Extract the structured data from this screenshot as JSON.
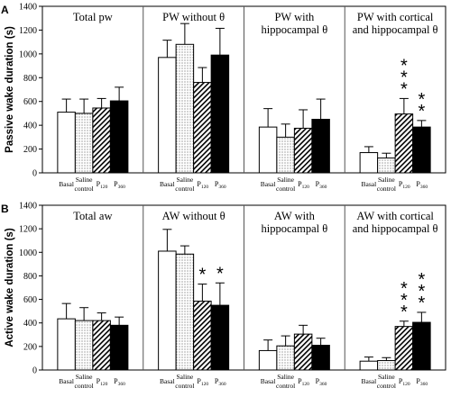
{
  "chart_data": [
    {
      "type": "bar",
      "panel_letter": "A",
      "ylabel": "Passive wake duration (s)",
      "ylim": [
        0,
        1400
      ],
      "yticks": [
        "0",
        "200",
        "400",
        "600",
        "800",
        "1000",
        "1200",
        "1400"
      ],
      "categories": [
        "Basal",
        "Saline control",
        "P120",
        "P360"
      ],
      "category_labels": {
        "basal": "Basal",
        "saline_line1": "Saline",
        "saline_line2": "control",
        "p_letter": "P",
        "p120_sub": "120",
        "p360_sub": "360"
      },
      "groups": [
        {
          "title_lines": [
            "Total pw"
          ],
          "values": [
            510,
            500,
            545,
            605
          ],
          "errors": [
            110,
            120,
            80,
            115
          ],
          "stars": [
            0,
            0,
            0,
            0
          ]
        },
        {
          "title_lines": [
            "PW without θ"
          ],
          "values": [
            970,
            1080,
            760,
            990
          ],
          "errors": [
            145,
            175,
            125,
            225
          ],
          "stars": [
            0,
            0,
            0,
            0
          ]
        },
        {
          "title_lines": [
            "PW with",
            "hippocampal θ"
          ],
          "values": [
            385,
            300,
            375,
            450
          ],
          "errors": [
            155,
            110,
            155,
            170
          ],
          "stars": [
            0,
            0,
            0,
            0
          ]
        },
        {
          "title_lines": [
            "PW with cortical",
            "and hippocampal θ"
          ],
          "values": [
            170,
            125,
            495,
            385
          ],
          "errors": [
            50,
            40,
            130,
            55
          ],
          "stars": [
            0,
            0,
            3,
            2
          ]
        }
      ]
    },
    {
      "type": "bar",
      "panel_letter": "B",
      "ylabel": "Active wake duration (s)",
      "ylim": [
        0,
        1400
      ],
      "yticks": [
        "0",
        "200",
        "400",
        "600",
        "800",
        "1000",
        "1200",
        "1400"
      ],
      "categories": [
        "Basal",
        "Saline control",
        "P120",
        "P360"
      ],
      "category_labels": {
        "basal": "Basal",
        "saline_line1": "Saline",
        "saline_line2": "control",
        "p_letter": "P",
        "p120_sub": "120",
        "p360_sub": "360"
      },
      "groups": [
        {
          "title_lines": [
            "Total aw"
          ],
          "values": [
            435,
            420,
            420,
            380
          ],
          "errors": [
            130,
            110,
            65,
            70
          ],
          "stars": [
            0,
            0,
            0,
            0
          ]
        },
        {
          "title_lines": [
            "AW without θ"
          ],
          "values": [
            1010,
            985,
            585,
            550
          ],
          "errors": [
            185,
            70,
            145,
            190
          ],
          "stars": [
            0,
            0,
            1,
            1
          ]
        },
        {
          "title_lines": [
            "AW with",
            "hippocampal θ"
          ],
          "values": [
            165,
            205,
            305,
            210
          ],
          "errors": [
            90,
            85,
            75,
            60
          ],
          "stars": [
            0,
            0,
            0,
            0
          ]
        },
        {
          "title_lines": [
            "AW with cortical",
            "and hippocampal θ"
          ],
          "values": [
            75,
            80,
            370,
            405
          ],
          "errors": [
            35,
            25,
            45,
            85
          ],
          "stars": [
            0,
            0,
            3,
            3
          ]
        }
      ]
    }
  ]
}
